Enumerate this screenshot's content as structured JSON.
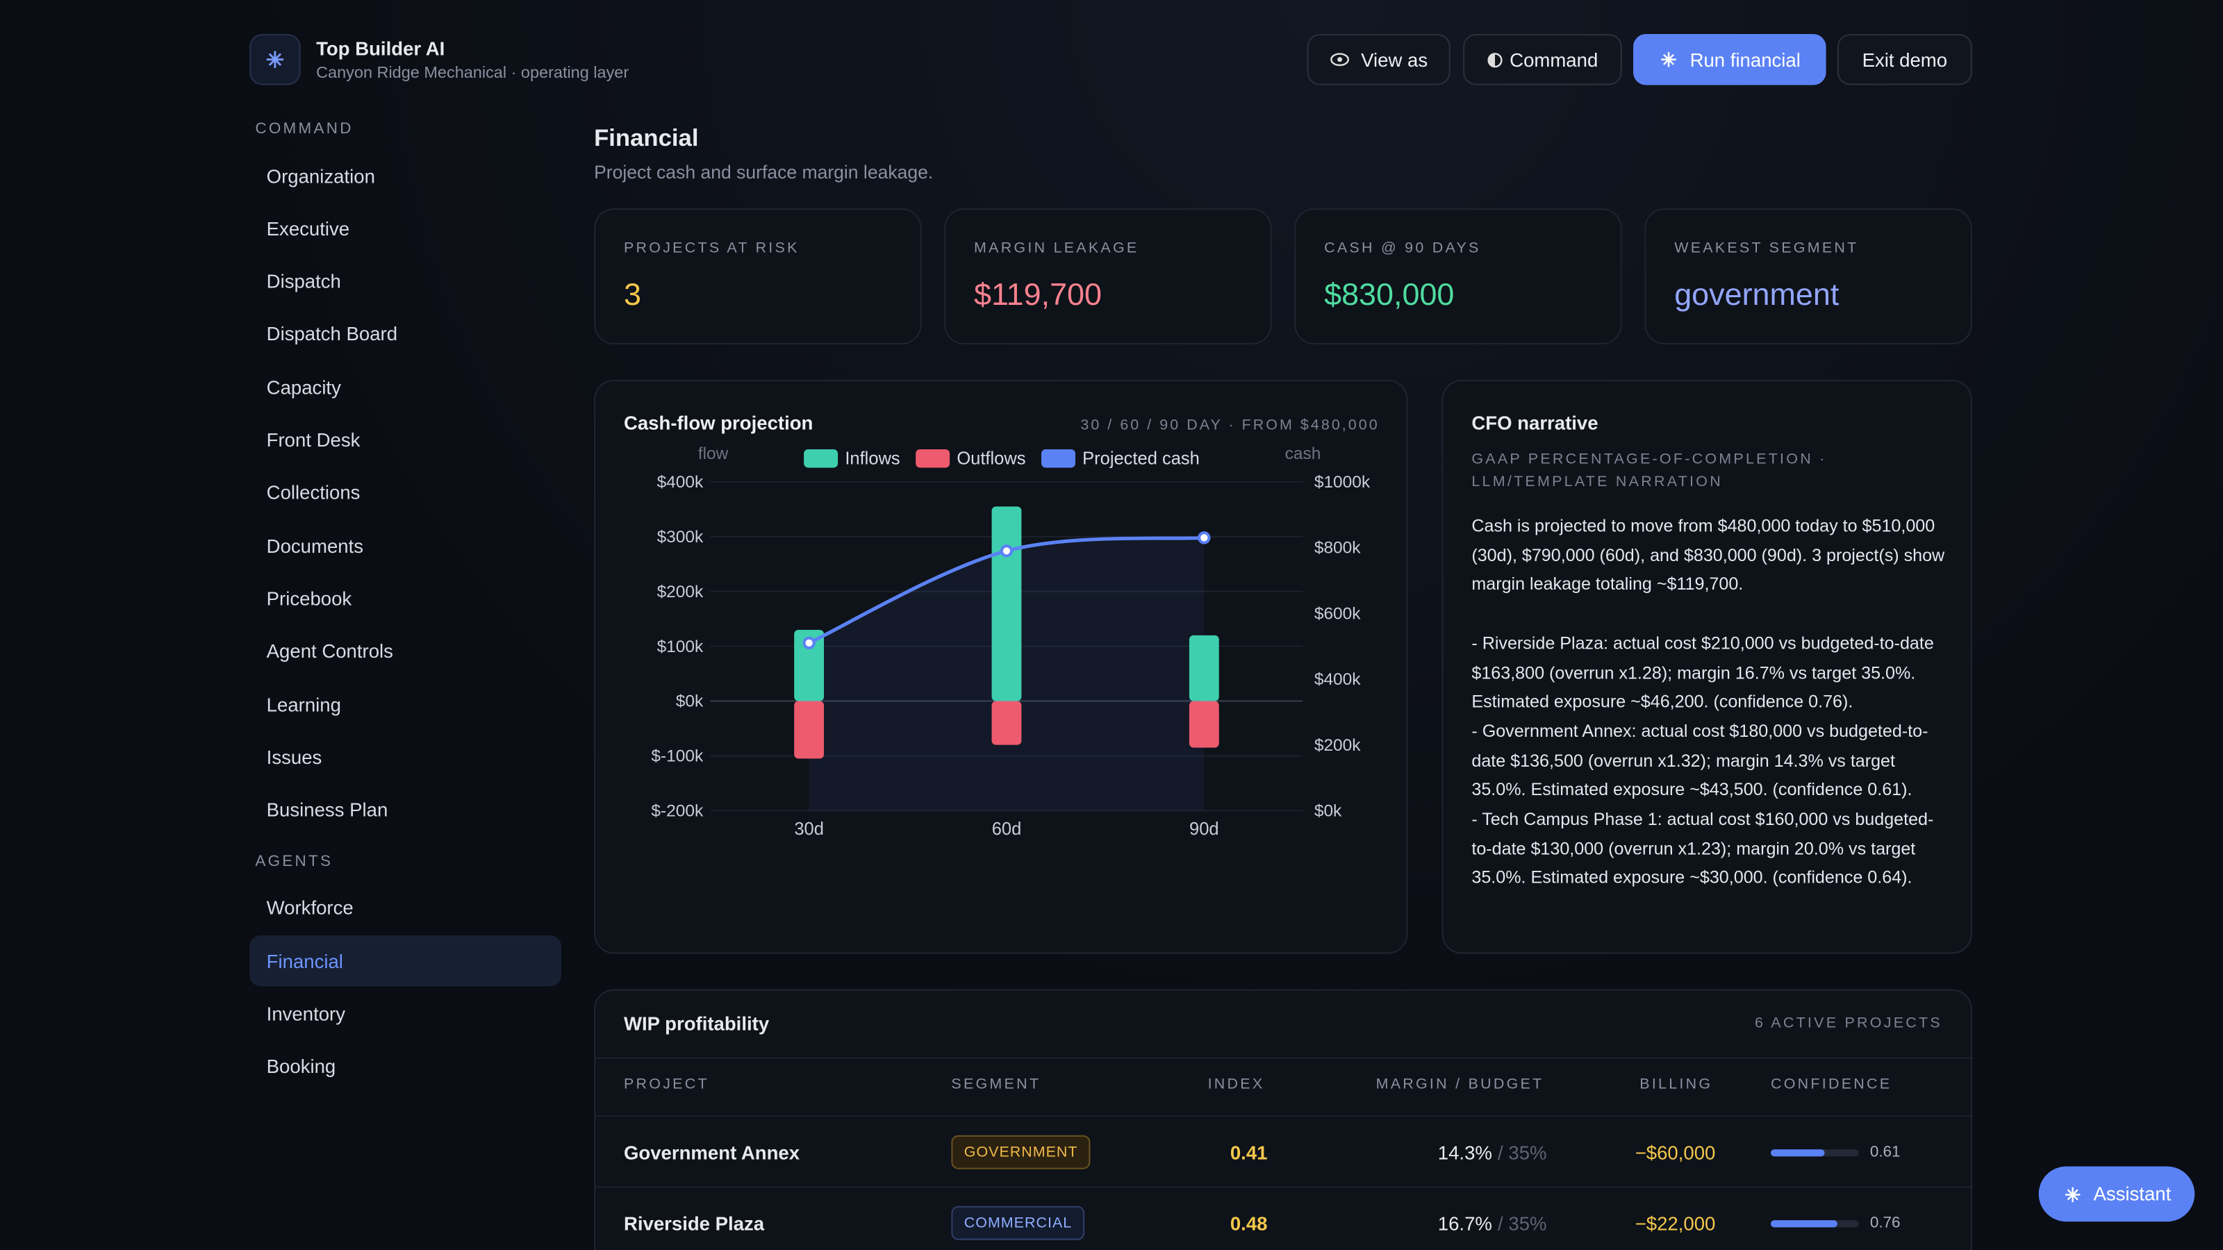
{
  "header": {
    "title": "Top Builder AI",
    "subtitle": "Canyon Ridge Mechanical · operating layer",
    "buttons": [
      "View as",
      "Command",
      "Run financial",
      "Exit demo"
    ]
  },
  "nav": {
    "sections": [
      {
        "label": "COMMAND",
        "items": [
          {
            "label": "Organization"
          },
          {
            "label": "Executive"
          },
          {
            "label": "Dispatch"
          },
          {
            "label": "Dispatch Board"
          },
          {
            "label": "Capacity"
          },
          {
            "label": "Front Desk"
          },
          {
            "label": "Collections"
          },
          {
            "label": "Documents"
          },
          {
            "label": "Pricebook"
          },
          {
            "label": "Agent Controls"
          },
          {
            "label": "Learning"
          },
          {
            "label": "Issues"
          },
          {
            "label": "Business Plan"
          }
        ]
      },
      {
        "label": "AGENTS",
        "items": [
          {
            "label": "Workforce"
          },
          {
            "label": "Financial",
            "active": true
          },
          {
            "label": "Inventory"
          },
          {
            "label": "Booking"
          }
        ]
      }
    ]
  },
  "page": {
    "title": "Financial",
    "subtitle": "Project cash and surface margin leakage."
  },
  "kpis": [
    {
      "label": "PROJECTS AT RISK",
      "value": "3",
      "color": "#f5c84c"
    },
    {
      "label": "MARGIN LEAKAGE",
      "value": "$119,700",
      "color": "#f8828f"
    },
    {
      "label": "CASH @ 90 DAYS",
      "value": "$830,000",
      "color": "#4fdca0"
    },
    {
      "label": "WEAKEST SEGMENT",
      "value": "government",
      "color": "#93a6ff"
    }
  ],
  "chart_data": {
    "type": "combo",
    "title": "Cash-flow projection",
    "subtitle": "30 / 60 / 90 DAY · FROM $480,000",
    "y_label": "flow",
    "y2_label": "cash",
    "categories": [
      "30d",
      "60d",
      "90d"
    ],
    "series": [
      {
        "name": "Inflows",
        "type": "bar",
        "color": "#3ecfae",
        "values": [
          130000,
          355000,
          120000
        ]
      },
      {
        "name": "Outflows",
        "type": "bar",
        "color": "#ee5b6f",
        "values": [
          -105000,
          -80000,
          -85000
        ]
      },
      {
        "name": "Projected cash",
        "type": "line",
        "axis": "y2",
        "color": "#5b82f5",
        "values": [
          510000,
          790000,
          830000
        ]
      }
    ],
    "ylim": [
      -200000,
      400000
    ],
    "yticks": [
      {
        "value": -200000,
        "label": "$-200k"
      },
      {
        "value": -100000,
        "label": "$-100k"
      },
      {
        "value": 0,
        "label": "$0k"
      },
      {
        "value": 100000,
        "label": "$100k"
      },
      {
        "value": 200000,
        "label": "$200k"
      },
      {
        "value": 300000,
        "label": "$300k"
      },
      {
        "value": 400000,
        "label": "$400k"
      }
    ],
    "y2lim": [
      0,
      1000000
    ],
    "y2ticks": [
      {
        "value": 0,
        "label": "$0k"
      },
      {
        "value": 200000,
        "label": "$200k"
      },
      {
        "value": 400000,
        "label": "$400k"
      },
      {
        "value": 600000,
        "label": "$600k"
      },
      {
        "value": 800000,
        "label": "$800k"
      },
      {
        "value": 1000000,
        "label": "$1000k"
      }
    ],
    "grid": true
  },
  "narrative": {
    "title": "CFO narrative",
    "subtitle": "GAAP PERCENTAGE-OF-COMPLETION · LLM/TEMPLATE NARRATION",
    "paragraphs": [
      "Cash is projected to move from $480,000 today to $510,000 (30d), $790,000 (60d), and $830,000 (90d). 3 project(s) show margin leakage totaling ~$119,700.",
      "- Riverside Plaza: actual cost $210,000 vs budgeted-to-date $163,800 (overrun x1.28); margin 16.7% vs target 35.0%. Estimated exposure ~$46,200. (confidence 0.76).",
      "- Government Annex: actual cost $180,000 vs budgeted-to-date $136,500 (overrun x1.32); margin 14.3% vs target 35.0%. Estimated exposure ~$43,500. (confidence 0.61).",
      "- Tech Campus Phase 1: actual cost $160,000 vs budgeted-to-date $130,000 (overrun x1.23); margin 20.0% vs target 35.0%. Estimated exposure ~$30,000. (confidence 0.64)."
    ]
  },
  "table": {
    "title": "WIP profitability",
    "note": "6 ACTIVE PROJECTS",
    "columns": [
      "PROJECT",
      "SEGMENT",
      "INDEX",
      "MARGIN / BUDGET",
      "BILLING",
      "CONFIDENCE"
    ],
    "rows": [
      [
        "Government Annex",
        "GOVERNMENT",
        0.41,
        "14.3%",
        "/ 35%",
        "−$60,000",
        0.61
      ],
      [
        "Riverside Plaza",
        "COMMERCIAL",
        0.48,
        "16.7%",
        "/ 35%",
        "−$22,000",
        0.76
      ]
    ]
  },
  "assistant": "Assistant"
}
